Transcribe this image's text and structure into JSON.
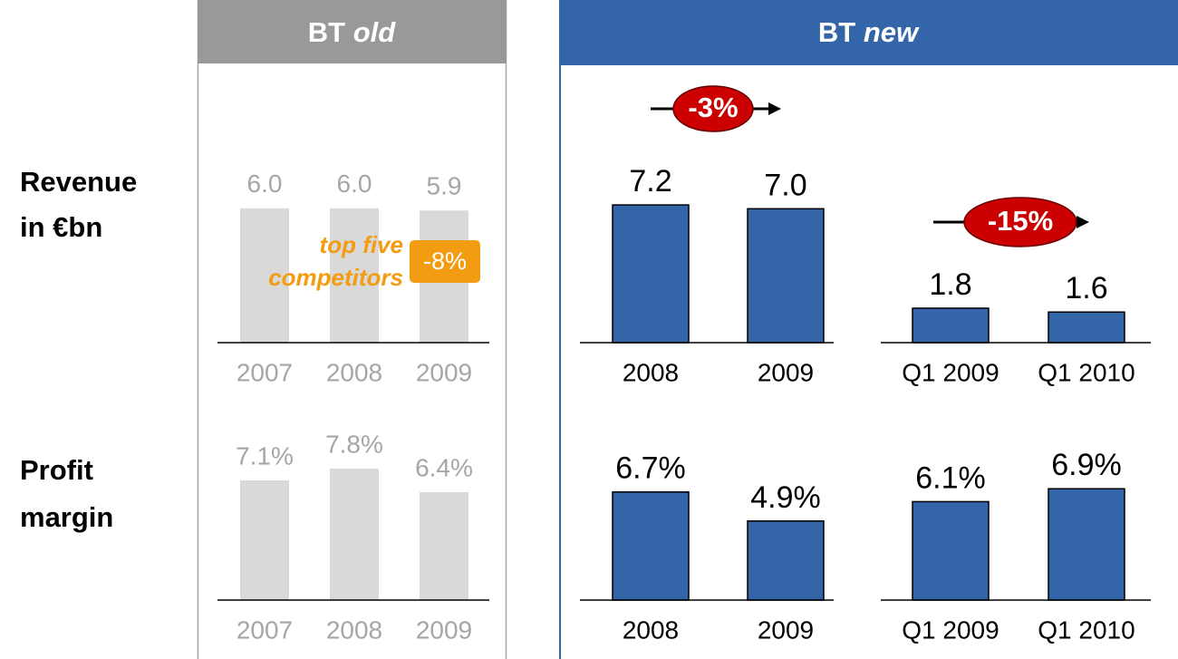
{
  "panels": [
    {
      "title": "BT",
      "emphasis": "old"
    },
    {
      "title": "BT",
      "emphasis": "new"
    }
  ],
  "rows": [
    {
      "lines": [
        "Revenue",
        "in €bn"
      ]
    },
    {
      "lines": [
        "Profit",
        "margin"
      ]
    }
  ],
  "chart_data": [
    {
      "type": "bar",
      "categories": [
        "2007",
        "2008",
        "2009"
      ],
      "values": [
        6.0,
        6.0,
        5.9
      ],
      "value_labels": [
        "6.0",
        "6.0",
        "5.9"
      ],
      "color": "#d9d9d9",
      "ylim": [
        0,
        10
      ],
      "annotation": {
        "text_lines": [
          "top five",
          "competitors"
        ],
        "badge": "-8%"
      }
    },
    {
      "type": "bar",
      "categories": [
        "2007",
        "2008",
        "2009"
      ],
      "values": [
        7.1,
        7.8,
        6.4
      ],
      "value_labels": [
        "7.1%",
        "7.8%",
        "6.4%"
      ],
      "color": "#d9d9d9",
      "ylim": [
        0,
        10
      ]
    },
    {
      "type": "bar",
      "categories": [
        "2008",
        "2009"
      ],
      "values": [
        7.2,
        7.0
      ],
      "value_labels": [
        "7.2",
        "7.0"
      ],
      "color": "#3465a9",
      "ylim": [
        0,
        10
      ],
      "annotation": {
        "badge": "-3%"
      }
    },
    {
      "type": "bar",
      "categories": [
        "Q1 2009",
        "Q1 2010"
      ],
      "values": [
        1.8,
        1.6
      ],
      "value_labels": [
        "1.8",
        "1.6"
      ],
      "color": "#3465a9",
      "ylim": [
        0,
        10
      ],
      "annotation": {
        "badge": "-15%"
      }
    },
    {
      "type": "bar",
      "categories": [
        "2008",
        "2009"
      ],
      "values": [
        6.7,
        4.9
      ],
      "value_labels": [
        "6.7%",
        "4.9%"
      ],
      "color": "#3465a9",
      "ylim": [
        0,
        10
      ]
    },
    {
      "type": "bar",
      "categories": [
        "Q1 2009",
        "Q1 2010"
      ],
      "values": [
        6.1,
        6.9
      ],
      "value_labels": [
        "6.1%",
        "6.9%"
      ],
      "color": "#3465a9",
      "ylim": [
        0,
        10
      ]
    }
  ]
}
